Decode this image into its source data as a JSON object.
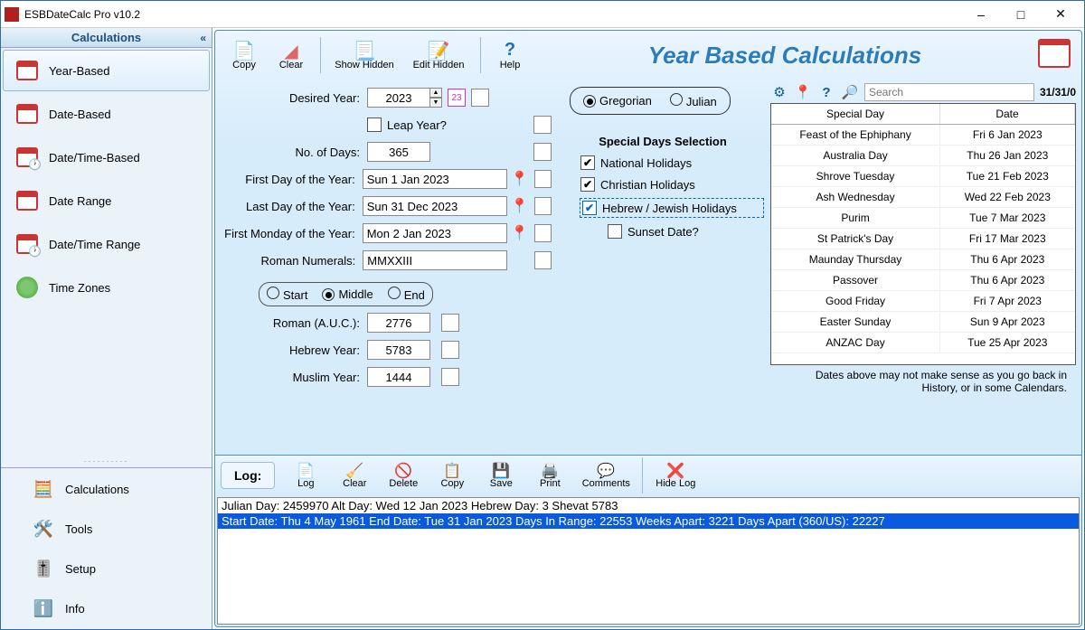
{
  "app": {
    "title": "ESBDateCalc Pro v10.2"
  },
  "sidebar": {
    "header": "Calculations",
    "items": [
      {
        "label": "Year-Based"
      },
      {
        "label": "Date-Based"
      },
      {
        "label": "Date/Time-Based"
      },
      {
        "label": "Date Range"
      },
      {
        "label": "Date/Time Range"
      },
      {
        "label": "Time Zones"
      }
    ],
    "bottom": [
      {
        "label": "Calculations"
      },
      {
        "label": "Tools"
      },
      {
        "label": "Setup"
      },
      {
        "label": "Info"
      }
    ]
  },
  "toolbar": {
    "copy": "Copy",
    "clear": "Clear",
    "showHidden": "Show Hidden",
    "editHidden": "Edit Hidden",
    "help": "Help"
  },
  "pageTitle": "Year Based Calculations",
  "form": {
    "desiredYear_label": "Desired Year:",
    "desiredYear": "2023",
    "yearBox": "23",
    "leapYear_label": "Leap Year?",
    "leapYear": false,
    "noDays_label": "No. of Days:",
    "noDays": "365",
    "firstDay_label": "First Day of the Year:",
    "firstDay": "Sun 1 Jan 2023",
    "lastDay_label": "Last Day of the Year:",
    "lastDay": "Sun 31 Dec 2023",
    "firstMonday_label": "First Monday of the Year:",
    "firstMonday": "Mon 2 Jan 2023",
    "roman_label": "Roman Numerals:",
    "roman": "MMXXIII",
    "seg_start": "Start",
    "seg_middle": "Middle",
    "seg_end": "End",
    "auc_label": "Roman (A.U.C.):",
    "auc": "2776",
    "hebrew_label": "Hebrew Year:",
    "hebrew": "5783",
    "muslim_label": "Muslim Year:",
    "muslim": "1444"
  },
  "calsel": {
    "gregorian": "Gregorian",
    "julian": "Julian"
  },
  "special": {
    "header": "Special Days Selection",
    "national": "National Holidays",
    "christian": "Christian Holidays",
    "hebrew": "Hebrew / Jewish Holidays",
    "sunset": "Sunset Date?"
  },
  "grid": {
    "searchPlaceholder": "Search",
    "counter": "31/31/0",
    "cols": {
      "name": "Special Day",
      "date": "Date"
    },
    "rows": [
      {
        "name": "Feast of the Ephiphany",
        "date": "Fri 6 Jan 2023"
      },
      {
        "name": "Australia Day",
        "date": "Thu 26 Jan 2023"
      },
      {
        "name": "Shrove Tuesday",
        "date": "Tue 21 Feb 2023"
      },
      {
        "name": "Ash Wednesday",
        "date": "Wed 22 Feb 2023"
      },
      {
        "name": "Purim",
        "date": "Tue 7 Mar 2023"
      },
      {
        "name": "St Patrick's Day",
        "date": "Fri 17 Mar 2023"
      },
      {
        "name": "Maunday Thursday",
        "date": "Thu 6 Apr 2023"
      },
      {
        "name": "Passover",
        "date": "Thu 6 Apr 2023"
      },
      {
        "name": "Good Friday",
        "date": "Fri 7 Apr 2023"
      },
      {
        "name": "Easter Sunday",
        "date": "Sun 9 Apr 2023"
      },
      {
        "name": "ANZAC Day",
        "date": "Tue 25 Apr 2023"
      }
    ]
  },
  "hint": "Dates above may not make sense as you go back in History, or in some Calendars.",
  "log": {
    "label": "Log:",
    "btns": {
      "log": "Log",
      "clear": "Clear",
      "delete": "Delete",
      "copy": "Copy",
      "save": "Save",
      "print": "Print",
      "comments": "Comments",
      "hide": "Hide Log"
    },
    "lines": [
      "Julian Day: 2459970 Alt Day: Wed 12 Jan 2023 Hebrew Day: 3 Shevat 5783",
      "Start Date: Thu 4 May 1961 End Date: Tue 31 Jan 2023 Days In Range: 22553 Weeks Apart: 3221 Days Apart (360/US): 22227"
    ]
  }
}
